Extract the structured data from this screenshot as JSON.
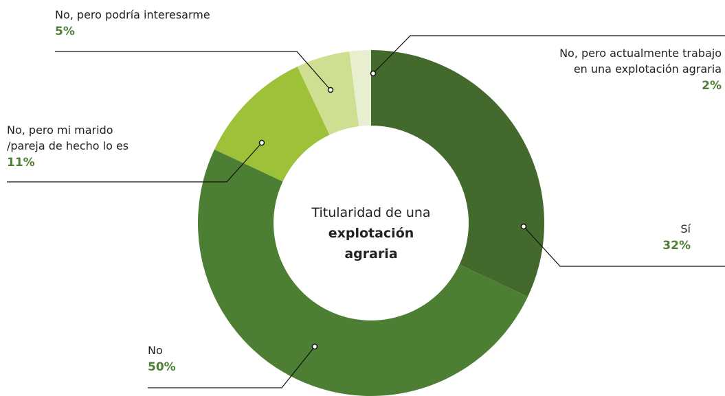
{
  "chart_data": {
    "type": "pie",
    "donut": true,
    "center_text": "Titularidad de una",
    "center_text_bold": "explotación agraria",
    "categories": [
      "Sí",
      "No",
      "No, pero mi marido /pareja de hecho lo es",
      "No, pero podría interesarme",
      "No, pero actualmente trabajo en una explotación agraria"
    ],
    "values": [
      32,
      50,
      11,
      5,
      2
    ],
    "value_labels": [
      "32%",
      "50%",
      "11%",
      "5%",
      "2%"
    ],
    "colors": [
      "#44692c",
      "#4c7f33",
      "#9ec13a",
      "#cfdf92",
      "#e7efd0"
    ]
  }
}
